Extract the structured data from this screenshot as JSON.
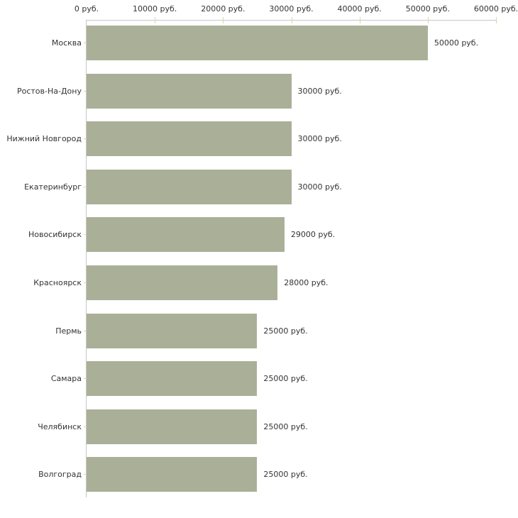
{
  "chart_data": {
    "type": "bar",
    "orientation": "horizontal",
    "categories": [
      "Москва",
      "Ростов-На-Дону",
      "Нижний Новгород",
      "Екатеринбург",
      "Новосибирск",
      "Красноярск",
      "Пермь",
      "Самара",
      "Челябинск",
      "Волгоград"
    ],
    "values": [
      50000,
      30000,
      30000,
      30000,
      29000,
      28000,
      25000,
      25000,
      25000,
      25000
    ],
    "value_labels": [
      "50000 руб.",
      "30000 руб.",
      "30000 руб.",
      "30000 руб.",
      "29000 руб.",
      "28000 руб.",
      "25000 руб.",
      "25000 руб.",
      "25000 руб.",
      "25000 руб."
    ],
    "x_ticks": [
      "0 руб.",
      "10000 руб.",
      "20000 руб.",
      "30000 руб.",
      "40000 руб.",
      "50000 руб.",
      "60000 руб."
    ],
    "x_tick_values": [
      0,
      10000,
      20000,
      30000,
      40000,
      50000,
      60000
    ],
    "xlim": [
      0,
      60000
    ],
    "legend": "none",
    "grid": "off",
    "axis_position": "top",
    "bar_color": "#aab097",
    "axis_color": "#c6c6c6",
    "tick_color": "#d9d5b0",
    "text_color": "#333333"
  }
}
